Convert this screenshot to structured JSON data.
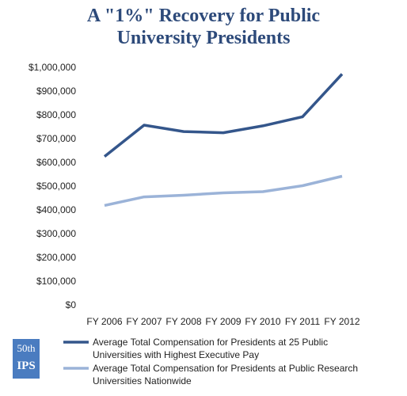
{
  "chart_data": {
    "type": "line",
    "title": "A \"1%\" Recovery for Public University Presidents",
    "categories": [
      "FY 2006",
      "FY 2007",
      "FY 2008",
      "FY 2009",
      "FY 2010",
      "FY 2011",
      "FY 2012"
    ],
    "series": [
      {
        "name": "Average Total Compensation for Presidents at 25 Public Universities with Highest Executive Pay",
        "color": "#34568b",
        "values": [
          628000,
          760000,
          733000,
          728000,
          757000,
          795000,
          975000
        ]
      },
      {
        "name": "Average Total Compensation for Presidents at Public Research Universities Nationwide",
        "color": "#9bb3d8",
        "values": [
          422000,
          458000,
          465000,
          475000,
          480000,
          505000,
          545000
        ]
      }
    ],
    "ylim": [
      0,
      1000000
    ],
    "yticks": [
      {
        "value": 0,
        "label": "$0"
      },
      {
        "value": 100000,
        "label": "$100,000"
      },
      {
        "value": 200000,
        "label": "$200,000"
      },
      {
        "value": 300000,
        "label": "$300,000"
      },
      {
        "value": 400000,
        "label": "$400,000"
      },
      {
        "value": 500000,
        "label": "$500,000"
      },
      {
        "value": 600000,
        "label": "$600,000"
      },
      {
        "value": 700000,
        "label": "$700,000"
      },
      {
        "value": 800000,
        "label": "$800,000"
      },
      {
        "value": 900000,
        "label": "$900,000"
      },
      {
        "value": 1000000,
        "label": "$1,000,000"
      }
    ],
    "grid": false,
    "legend": "bottom"
  },
  "logo": {
    "line1": "50th",
    "line2": "IPS"
  }
}
